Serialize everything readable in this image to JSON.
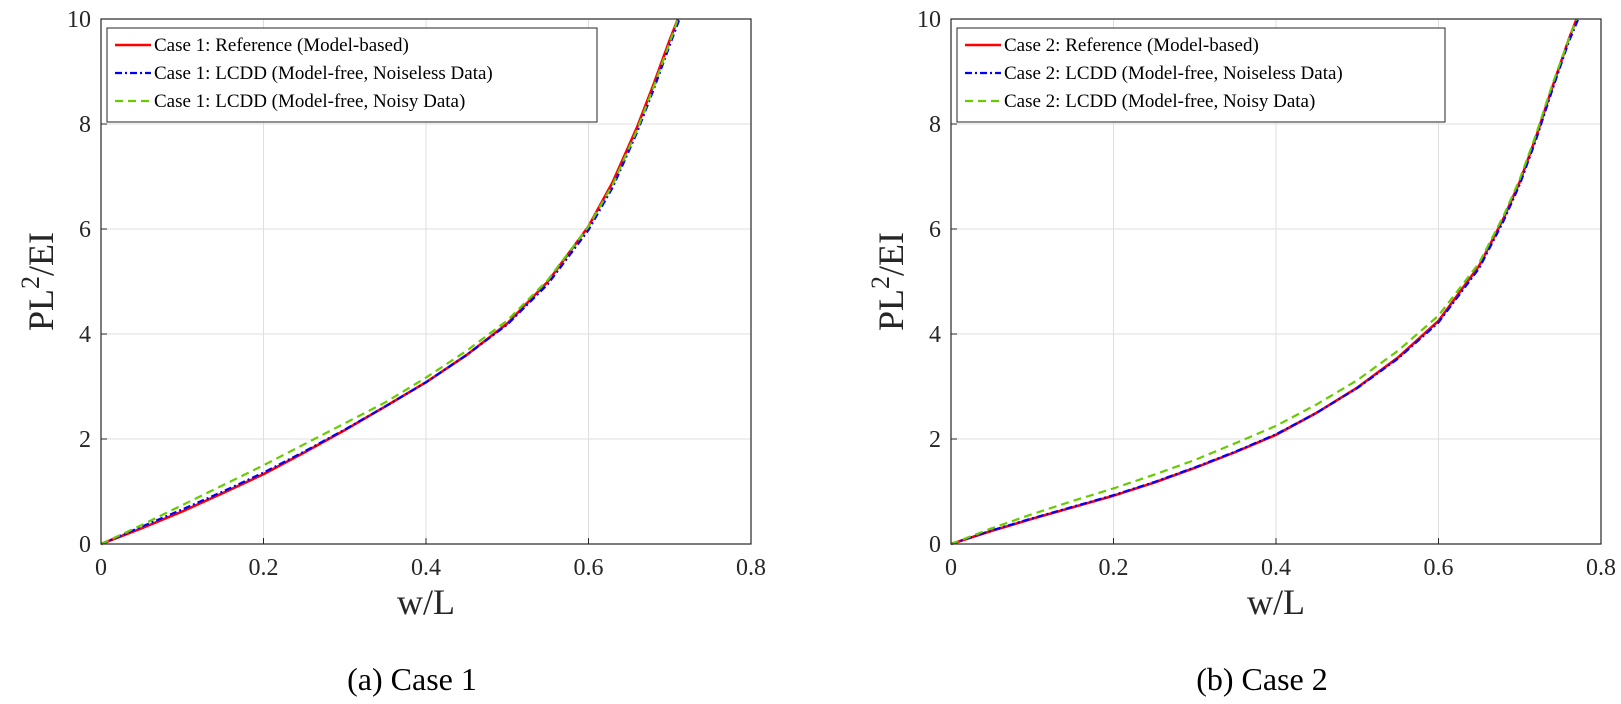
{
  "chart_data": [
    {
      "type": "line",
      "caption": "(a) Case 1",
      "xlabel": "w/L",
      "ylabel": "PL",
      "ylabel_sup": "2",
      "ylabel_suffix": "/EI",
      "xlim": [
        0,
        0.8
      ],
      "ylim": [
        0,
        10
      ],
      "xticks": [
        "0",
        "0.2",
        "0.4",
        "0.6",
        "0.8"
      ],
      "yticks": [
        "0",
        "2",
        "4",
        "6",
        "8",
        "10"
      ],
      "grid": true,
      "legend_position": "top-left",
      "series": [
        {
          "name": "Case 1: Reference (Model-based)",
          "color": "#ff0000",
          "style": "solid",
          "x": [
            0,
            0.05,
            0.1,
            0.15,
            0.2,
            0.25,
            0.3,
            0.35,
            0.4,
            0.45,
            0.5,
            0.55,
            0.6,
            0.63,
            0.66,
            0.68,
            0.7,
            0.71
          ],
          "y": [
            0,
            0.3,
            0.62,
            0.97,
            1.33,
            1.74,
            2.17,
            2.62,
            3.08,
            3.6,
            4.2,
            5.0,
            6.05,
            6.9,
            7.95,
            8.75,
            9.6,
            10.0
          ]
        },
        {
          "name": "Case 1: LCDD (Model-free, Noiseless Data)",
          "color": "#0000ff",
          "style": "dashdot",
          "x": [
            0,
            0.05,
            0.1,
            0.15,
            0.2,
            0.25,
            0.3,
            0.35,
            0.4,
            0.45,
            0.5,
            0.55,
            0.6,
            0.63,
            0.66,
            0.68,
            0.7,
            0.712
          ],
          "y": [
            0,
            0.33,
            0.66,
            1.0,
            1.36,
            1.76,
            2.18,
            2.62,
            3.08,
            3.6,
            4.18,
            4.95,
            5.98,
            6.8,
            7.85,
            8.65,
            9.5,
            10.0
          ]
        },
        {
          "name": "Case 1: LCDD (Model-free, Noisy Data)",
          "color": "#66cc00",
          "style": "dashed",
          "x": [
            0,
            0.05,
            0.1,
            0.15,
            0.2,
            0.25,
            0.3,
            0.35,
            0.4,
            0.45,
            0.5,
            0.55,
            0.6,
            0.63,
            0.66,
            0.68,
            0.7,
            0.71
          ],
          "y": [
            0,
            0.36,
            0.74,
            1.12,
            1.5,
            1.9,
            2.3,
            2.7,
            3.17,
            3.68,
            4.26,
            5.03,
            6.05,
            6.85,
            7.9,
            8.7,
            9.55,
            10.0
          ]
        }
      ]
    },
    {
      "type": "line",
      "caption": "(b) Case 2",
      "xlabel": "w/L",
      "ylabel": "PL",
      "ylabel_sup": "2",
      "ylabel_suffix": "/EI",
      "xlim": [
        0,
        0.8
      ],
      "ylim": [
        0,
        10
      ],
      "xticks": [
        "0",
        "0.2",
        "0.4",
        "0.6",
        "0.8"
      ],
      "yticks": [
        "0",
        "2",
        "4",
        "6",
        "8",
        "10"
      ],
      "grid": true,
      "legend_position": "top-left",
      "series": [
        {
          "name": "Case 2: Reference (Model-based)",
          "color": "#ff0000",
          "style": "solid",
          "x": [
            0,
            0.05,
            0.1,
            0.15,
            0.2,
            0.25,
            0.3,
            0.35,
            0.4,
            0.45,
            0.5,
            0.55,
            0.6,
            0.65,
            0.68,
            0.7,
            0.72,
            0.74,
            0.76,
            0.77
          ],
          "y": [
            0,
            0.25,
            0.48,
            0.7,
            0.92,
            1.17,
            1.45,
            1.75,
            2.08,
            2.5,
            2.98,
            3.55,
            4.25,
            5.3,
            6.2,
            6.9,
            7.75,
            8.7,
            9.6,
            10.0
          ]
        },
        {
          "name": "Case 2: LCDD (Model-free, Noiseless Data)",
          "color": "#0000ff",
          "style": "dashdot",
          "x": [
            0,
            0.05,
            0.1,
            0.15,
            0.2,
            0.25,
            0.3,
            0.35,
            0.4,
            0.45,
            0.5,
            0.55,
            0.6,
            0.65,
            0.68,
            0.7,
            0.72,
            0.74,
            0.76,
            0.772
          ],
          "y": [
            0,
            0.26,
            0.49,
            0.71,
            0.93,
            1.18,
            1.46,
            1.76,
            2.09,
            2.5,
            2.97,
            3.53,
            4.22,
            5.25,
            6.15,
            6.85,
            7.7,
            8.65,
            9.55,
            10.0
          ]
        },
        {
          "name": "Case 2: LCDD (Model-free, Noisy Data)",
          "color": "#66cc00",
          "style": "dashed",
          "x": [
            0,
            0.05,
            0.1,
            0.15,
            0.2,
            0.25,
            0.3,
            0.35,
            0.4,
            0.45,
            0.5,
            0.55,
            0.6,
            0.65,
            0.68,
            0.7,
            0.72,
            0.74,
            0.76,
            0.77
          ],
          "y": [
            0,
            0.3,
            0.57,
            0.82,
            1.06,
            1.32,
            1.6,
            1.92,
            2.25,
            2.66,
            3.12,
            3.68,
            4.35,
            5.35,
            6.25,
            6.95,
            7.8,
            8.75,
            9.6,
            10.0
          ]
        }
      ]
    }
  ]
}
